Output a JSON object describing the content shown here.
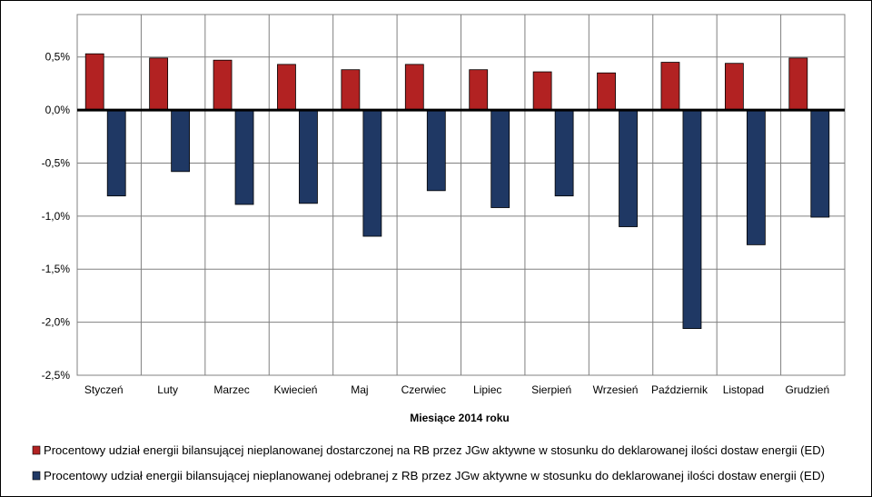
{
  "chart_data": {
    "type": "bar",
    "xlabel": "Miesiące 2014 roku",
    "ylabel": "",
    "ylim": [
      -2.5,
      0.9
    ],
    "grid": true,
    "legend_position": "bottom",
    "y_ticks": [
      0.5,
      0.0,
      -0.5,
      -1.0,
      -1.5,
      -2.0,
      -2.5
    ],
    "y_tick_labels": [
      "0,5%",
      "0,0%",
      "-0,5%",
      "-1,0%",
      "-1,5%",
      "-2,0%",
      "-2,5%"
    ],
    "categories": [
      "Styczeń",
      "Luty",
      "Marzec",
      "Kwiecień",
      "Maj",
      "Czerwiec",
      "Lipiec",
      "Sierpień",
      "Wrzesień",
      "Październik",
      "Listopad",
      "Grudzień"
    ],
    "series": [
      {
        "name": "Procentowy udział energii bilansującej nieplanowanej dostarczonej na RB przez JGw aktywne w stosunku do deklarowanej ilości dostaw energii (ED)",
        "color": "#B22222",
        "values": [
          0.53,
          0.49,
          0.47,
          0.43,
          0.38,
          0.43,
          0.38,
          0.36,
          0.35,
          0.45,
          0.44,
          0.49
        ]
      },
      {
        "name": "Procentowy udział energii bilansującej nieplanowanej odebranej z RB przez JGw aktywne w stosunku do deklarowanej ilości dostaw energii (ED)",
        "color": "#1F3864",
        "values": [
          -0.81,
          -0.58,
          -0.89,
          -0.88,
          -1.19,
          -0.76,
          -0.92,
          -0.81,
          -1.1,
          -2.06,
          -1.27,
          -1.01
        ]
      }
    ]
  }
}
